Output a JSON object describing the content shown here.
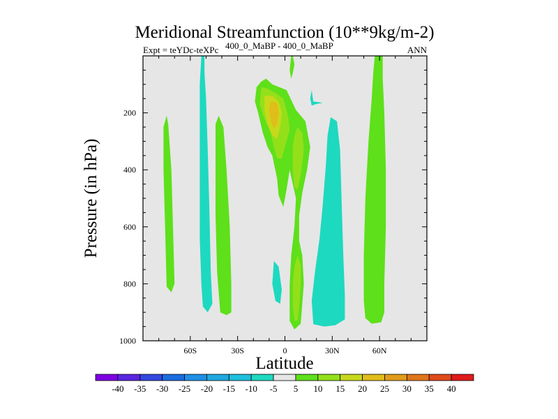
{
  "chart_data": {
    "type": "contour",
    "title": "Meridional Streamfunction (10**9kg/m-2)",
    "subtitle_left": "Expt = teYDc-teXPc",
    "subtitle_super": "400_0_MaBP - 400_0_MaBP",
    "subtitle_right": "ANN",
    "xlabel": "Latitude",
    "ylabel": "Pressure (in hPa)",
    "xlim": [
      -90,
      90
    ],
    "ylim": [
      1000,
      0
    ],
    "x_ticks": [
      {
        "value": -60,
        "label": "60S"
      },
      {
        "value": -30,
        "label": "30S"
      },
      {
        "value": 0,
        "label": "0"
      },
      {
        "value": 30,
        "label": "30N"
      },
      {
        "value": 60,
        "label": "60N"
      }
    ],
    "y_ticks": [
      {
        "value": 200,
        "label": "200"
      },
      {
        "value": 400,
        "label": "400"
      },
      {
        "value": 600,
        "label": "600"
      },
      {
        "value": 800,
        "label": "800"
      },
      {
        "value": 1000,
        "label": "1000"
      }
    ],
    "background_color": "#e6e6e6",
    "colorbar": {
      "labels": [
        "-40",
        "-35",
        "-30",
        "-25",
        "-20",
        "-15",
        "-10",
        "-5",
        "5",
        "10",
        "15",
        "20",
        "25",
        "30",
        "35",
        "40"
      ],
      "colors": [
        "#7e00e3",
        "#5a25e0",
        "#3347e0",
        "#1a6ce0",
        "#1f8fe6",
        "#1fa8e0",
        "#1fbfdc",
        "#1dd9c0",
        "#e6e6e6",
        "#5ee01a",
        "#93e01a",
        "#c7d91a",
        "#e0bd1a",
        "#e09c1a",
        "#e0751a",
        "#e04a1a",
        "#e01a1a"
      ]
    },
    "regions": [
      {
        "level": -5,
        "color": "#1dd9c0",
        "points": [
          [
            -53,
            0
          ],
          [
            -51,
            0
          ],
          [
            -51,
            60
          ],
          [
            -50,
            150
          ],
          [
            -49,
            320
          ],
          [
            -48,
            520
          ],
          [
            -47,
            760
          ],
          [
            -46,
            870
          ],
          [
            -49,
            900
          ],
          [
            -52,
            880
          ],
          [
            -53,
            800
          ],
          [
            -54,
            640
          ],
          [
            -54,
            420
          ],
          [
            -54,
            240
          ],
          [
            -54,
            100
          ]
        ]
      },
      {
        "level": -5,
        "color": "#1dd9c0",
        "points": [
          [
            -7,
            720
          ],
          [
            -4,
            740
          ],
          [
            -2,
            820
          ],
          [
            -3,
            870
          ],
          [
            -6,
            860
          ],
          [
            -8,
            800
          ]
        ]
      },
      {
        "level": -5,
        "color": "#1dd9c0",
        "points": [
          [
            17,
            120
          ],
          [
            18,
            160
          ],
          [
            24,
            165
          ],
          [
            19,
            170
          ],
          [
            17,
            175
          ],
          [
            16,
            150
          ]
        ]
      },
      {
        "level": -5,
        "color": "#1dd9c0",
        "points": [
          [
            29,
            215
          ],
          [
            33,
            230
          ],
          [
            35,
            330
          ],
          [
            36,
            520
          ],
          [
            37,
            700
          ],
          [
            38,
            840
          ],
          [
            38,
            925
          ],
          [
            32,
            945
          ],
          [
            25,
            950
          ],
          [
            18,
            942
          ],
          [
            17,
            860
          ],
          [
            19,
            760
          ],
          [
            22,
            640
          ],
          [
            24,
            520
          ],
          [
            26,
            380
          ],
          [
            27,
            280
          ]
        ]
      },
      {
        "level": 5,
        "color": "#5ee01a",
        "points": [
          [
            -75,
            210
          ],
          [
            -74,
            240
          ],
          [
            -72,
            400
          ],
          [
            -71,
            600
          ],
          [
            -70,
            800
          ],
          [
            -72,
            830
          ],
          [
            -75,
            810
          ],
          [
            -76,
            600
          ],
          [
            -77,
            400
          ],
          [
            -77,
            250
          ]
        ]
      },
      {
        "level": 5,
        "color": "#5ee01a",
        "points": [
          [
            -42,
            210
          ],
          [
            -39,
            250
          ],
          [
            -37,
            400
          ],
          [
            -35,
            600
          ],
          [
            -34,
            800
          ],
          [
            -34,
            900
          ],
          [
            -37,
            910
          ],
          [
            -41,
            900
          ],
          [
            -43,
            760
          ],
          [
            -44,
            560
          ],
          [
            -44,
            360
          ],
          [
            -44,
            240
          ]
        ]
      },
      {
        "level": 5,
        "color": "#5ee01a",
        "points": [
          [
            -15,
            90
          ],
          [
            -12,
            80
          ],
          [
            -8,
            100
          ],
          [
            1,
            120
          ],
          [
            7,
            190
          ],
          [
            13,
            230
          ],
          [
            16,
            320
          ],
          [
            14,
            400
          ],
          [
            11,
            480
          ],
          [
            9,
            560
          ],
          [
            9,
            650
          ],
          [
            11,
            700
          ],
          [
            12,
            800
          ],
          [
            10,
            940
          ],
          [
            6,
            960
          ],
          [
            3,
            930
          ],
          [
            3,
            800
          ],
          [
            4,
            700
          ],
          [
            6,
            600
          ],
          [
            7,
            500
          ],
          [
            3,
            400
          ],
          [
            1,
            470
          ],
          [
            -1,
            530
          ],
          [
            -4,
            490
          ],
          [
            -5,
            430
          ],
          [
            -8,
            350
          ],
          [
            -11,
            320
          ],
          [
            -14,
            270
          ],
          [
            -17,
            200
          ],
          [
            -19,
            160
          ],
          [
            -18,
            110
          ]
        ]
      },
      {
        "level": 5,
        "color": "#5ee01a",
        "points": [
          [
            4,
            0
          ],
          [
            5,
            0
          ],
          [
            6,
            30
          ],
          [
            5,
            60
          ],
          [
            4,
            80
          ],
          [
            3,
            50
          ]
        ]
      },
      {
        "level": 5,
        "color": "#5ee01a",
        "points": [
          [
            57,
            0
          ],
          [
            62,
            0
          ],
          [
            62,
            80
          ],
          [
            63,
            200
          ],
          [
            64,
            400
          ],
          [
            64,
            600
          ],
          [
            63,
            800
          ],
          [
            63,
            900
          ],
          [
            61,
            935
          ],
          [
            55,
            940
          ],
          [
            51,
            920
          ],
          [
            50,
            860
          ],
          [
            50,
            700
          ],
          [
            51,
            500
          ],
          [
            53,
            300
          ],
          [
            55,
            150
          ],
          [
            56,
            60
          ]
        ]
      },
      {
        "level": 10,
        "color": "#93e01a",
        "points": [
          [
            -15,
            110
          ],
          [
            -11,
            115
          ],
          [
            -6,
            130
          ],
          [
            -1,
            150
          ],
          [
            2,
            210
          ],
          [
            3,
            260
          ],
          [
            0,
            320
          ],
          [
            -2,
            360
          ],
          [
            -5,
            360
          ],
          [
            -7,
            320
          ],
          [
            -9,
            270
          ],
          [
            -13,
            220
          ],
          [
            -16,
            170
          ]
        ]
      },
      {
        "level": 10,
        "color": "#93e01a",
        "points": [
          [
            8,
            250
          ],
          [
            11,
            270
          ],
          [
            12,
            330
          ],
          [
            10,
            420
          ],
          [
            8,
            470
          ],
          [
            6,
            460
          ],
          [
            5,
            400
          ],
          [
            5,
            320
          ],
          [
            6,
            280
          ]
        ]
      },
      {
        "level": 10,
        "color": "#93e01a",
        "points": [
          [
            8,
            700
          ],
          [
            10,
            730
          ],
          [
            10,
            800
          ],
          [
            9,
            880
          ],
          [
            8,
            930
          ],
          [
            6,
            930
          ],
          [
            5,
            880
          ],
          [
            5,
            800
          ],
          [
            6,
            740
          ]
        ]
      },
      {
        "level": 15,
        "color": "#c7d91a",
        "points": [
          [
            -13,
            140
          ],
          [
            -8,
            140
          ],
          [
            -4,
            160
          ],
          [
            -2,
            200
          ],
          [
            -3,
            250
          ],
          [
            -5,
            290
          ],
          [
            -8,
            280
          ],
          [
            -11,
            240
          ],
          [
            -13,
            190
          ]
        ]
      },
      {
        "level": 20,
        "color": "#e0bd1a",
        "points": [
          [
            -9,
            160
          ],
          [
            -5,
            165
          ],
          [
            -4,
            200
          ],
          [
            -5,
            240
          ],
          [
            -7,
            255
          ],
          [
            -9,
            230
          ],
          [
            -10,
            190
          ]
        ]
      }
    ]
  }
}
